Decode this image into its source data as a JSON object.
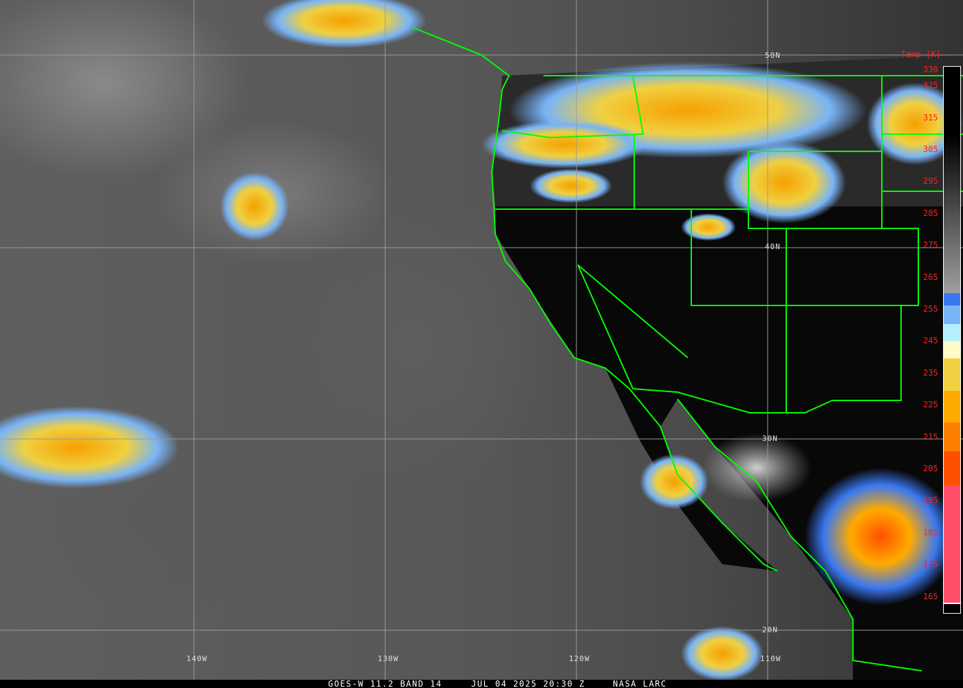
{
  "title": {
    "satellite": "GOES-W 11.2 BAND 14",
    "datetime": "JUL 04 2025 20:30 Z",
    "source": "NASA LARC"
  },
  "colorbar": {
    "title": "Temp [K]",
    "ticks": [
      "330",
      "325",
      "315",
      "305",
      "295",
      "285",
      "275",
      "265",
      "255",
      "245",
      "235",
      "225",
      "215",
      "205",
      "195",
      "185",
      "175",
      "165"
    ],
    "colors": {
      "warm_top": "#000000",
      "gray_mid": "#a0a0a0",
      "blue": "#3a78f0",
      "light_blue": "#78b4f8",
      "pale_cyan": "#b4f0ff",
      "pale_yellow": "#fffac8",
      "yellow": "#f0d040",
      "orange": "#ffaa00",
      "dark_orange": "#ff8000",
      "red_orange": "#ff5000",
      "pink": "#ff4e6a"
    }
  },
  "latitude_labels": [
    "50N",
    "40N",
    "30N",
    "20N"
  ],
  "longitude_labels": [
    "140W",
    "130W",
    "120W",
    "110W"
  ],
  "border_color": "#00ff00"
}
